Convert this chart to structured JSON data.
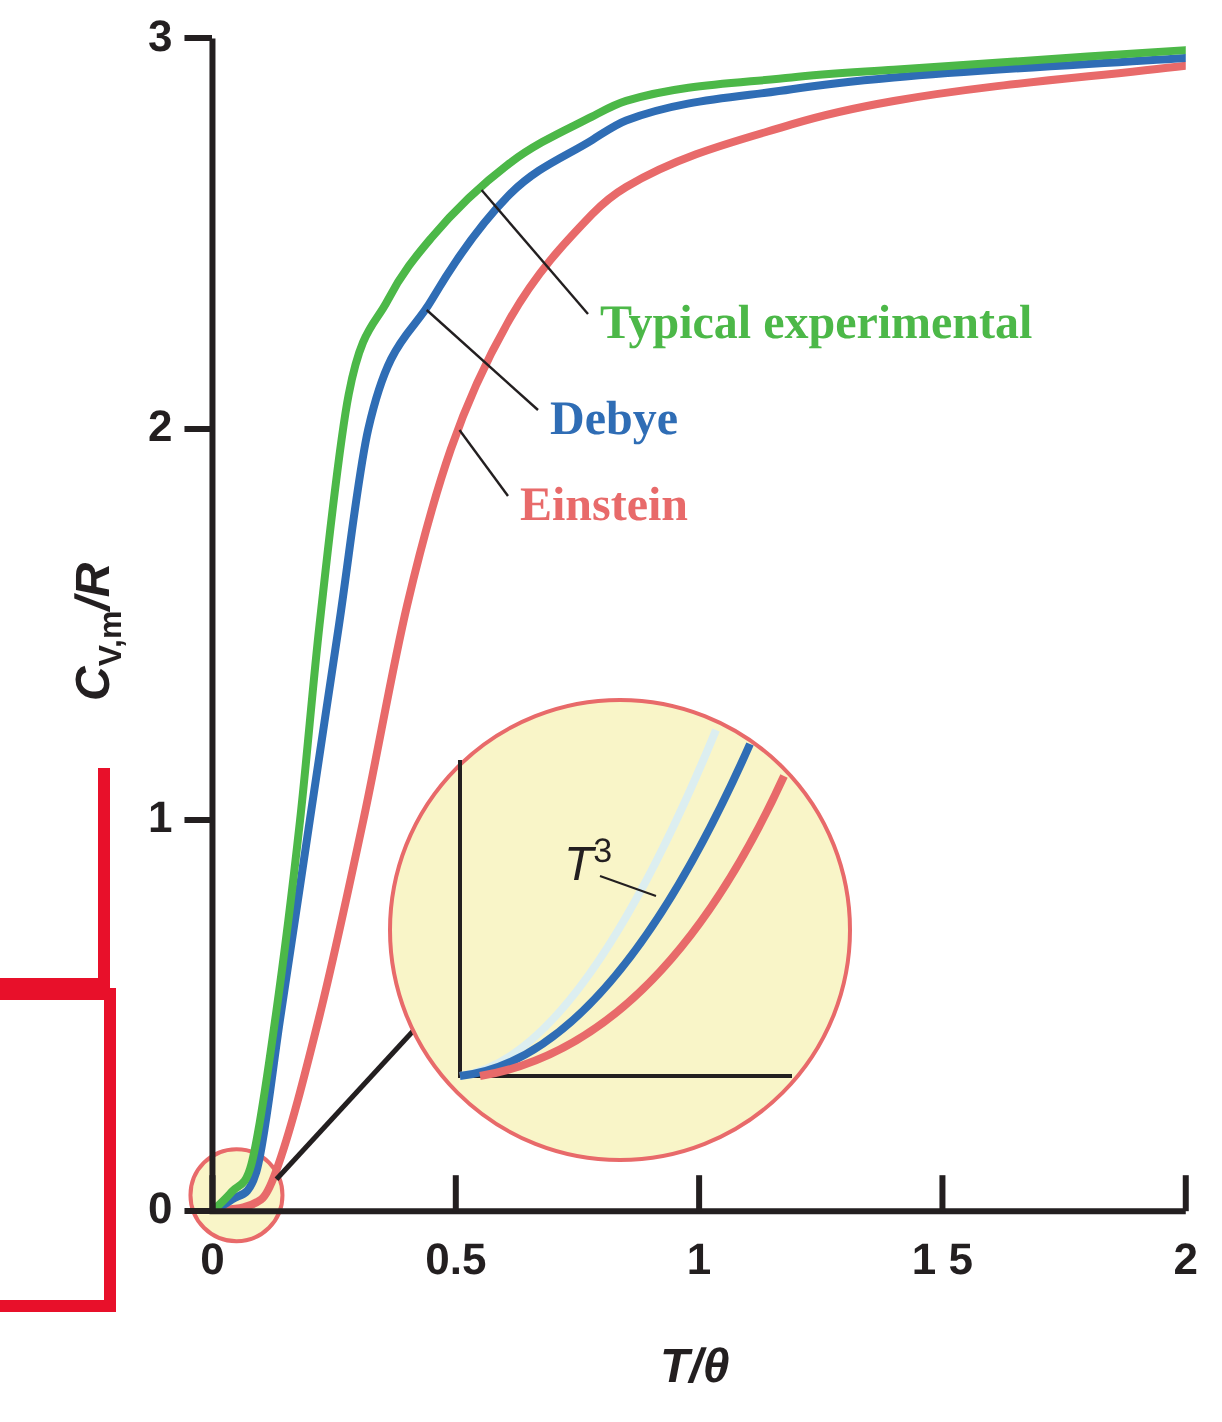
{
  "chart_data": {
    "type": "line",
    "xlabel": "T/θ",
    "ylabel": "C$_{V,m}$/R",
    "xlim": [
      0,
      2
    ],
    "xticks": [
      0,
      0.5,
      1,
      {
        "value": 1.5,
        "label": "1 5"
      },
      2
    ],
    "ylim": [
      0,
      3
    ],
    "yticks": [
      0,
      1,
      2,
      3
    ],
    "grid": false,
    "legend": false,
    "marker": "none",
    "line_style": "solid",
    "annotations": [
      "T$^{3}$"
    ],
    "series": [
      {
        "name": "Typical experimental",
        "color": "#4cb848",
        "x": [
          0,
          0.04,
          0.08,
          0.13,
          0.18,
          0.22,
          0.28,
          0.36,
          0.45,
          0.61,
          0.78,
          0.85,
          1.19,
          1.4,
          2
        ],
        "values": [
          0,
          0.05,
          0.12,
          0.5,
          1,
          1.5,
          2.09,
          2.33,
          2.49,
          2.68,
          2.8,
          2.84,
          2.9,
          2.92,
          2.97
        ]
      },
      {
        "name": "Debye",
        "color": "#2f6db5",
        "x": [
          0,
          0.04,
          0.09,
          0.14,
          0.2,
          0.26,
          0.32,
          0.45,
          0.61,
          0.78,
          0.85,
          1.19,
          1.4,
          2
        ],
        "values": [
          0,
          0.03,
          0.1,
          0.5,
          1,
          1.5,
          2,
          2.33,
          2.6,
          2.74,
          2.79,
          2.87,
          2.9,
          2.95
        ]
      },
      {
        "name": "Einstein",
        "color": "#e86a6a",
        "x": [
          0,
          0.1,
          0.13,
          0.22,
          0.31,
          0.4,
          0.49,
          0.61,
          0.78,
          0.85,
          1.19,
          1.4,
          2
        ],
        "values": [
          0,
          0.03,
          0.1,
          0.5,
          1,
          1.55,
          1.95,
          2.28,
          2.55,
          2.62,
          2.78,
          2.84,
          2.93
        ]
      }
    ]
  }
}
